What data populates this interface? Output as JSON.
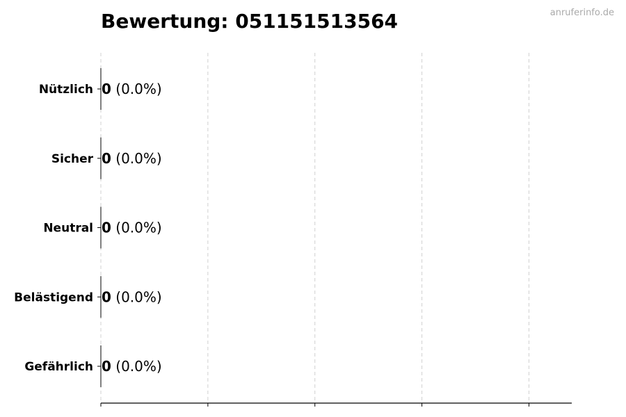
{
  "watermark": "anruferinfo.de",
  "chart_data": {
    "type": "bar",
    "orientation": "horizontal",
    "title": "Bewertung: 051151513564",
    "categories": [
      "Nützlich",
      "Sicher",
      "Neutral",
      "Belästigend",
      "Gefährlich"
    ],
    "values": [
      0,
      0,
      0,
      0,
      0
    ],
    "labels": [
      "0",
      "0",
      "0",
      "0",
      "0"
    ],
    "percent_labels": [
      "(0.0%)",
      "(0.0%)",
      "(0.0%)",
      "(0.0%)",
      "(0.0%)"
    ],
    "xlim": [
      0,
      4.4
    ],
    "xticks": [
      0,
      1,
      2,
      3,
      4
    ],
    "xtick_labels_shown": false,
    "grid": "vertical dashed",
    "colors": {
      "grid": "#d0d0d0",
      "axis": "#000000",
      "bar_edge": "#000000"
    }
  }
}
